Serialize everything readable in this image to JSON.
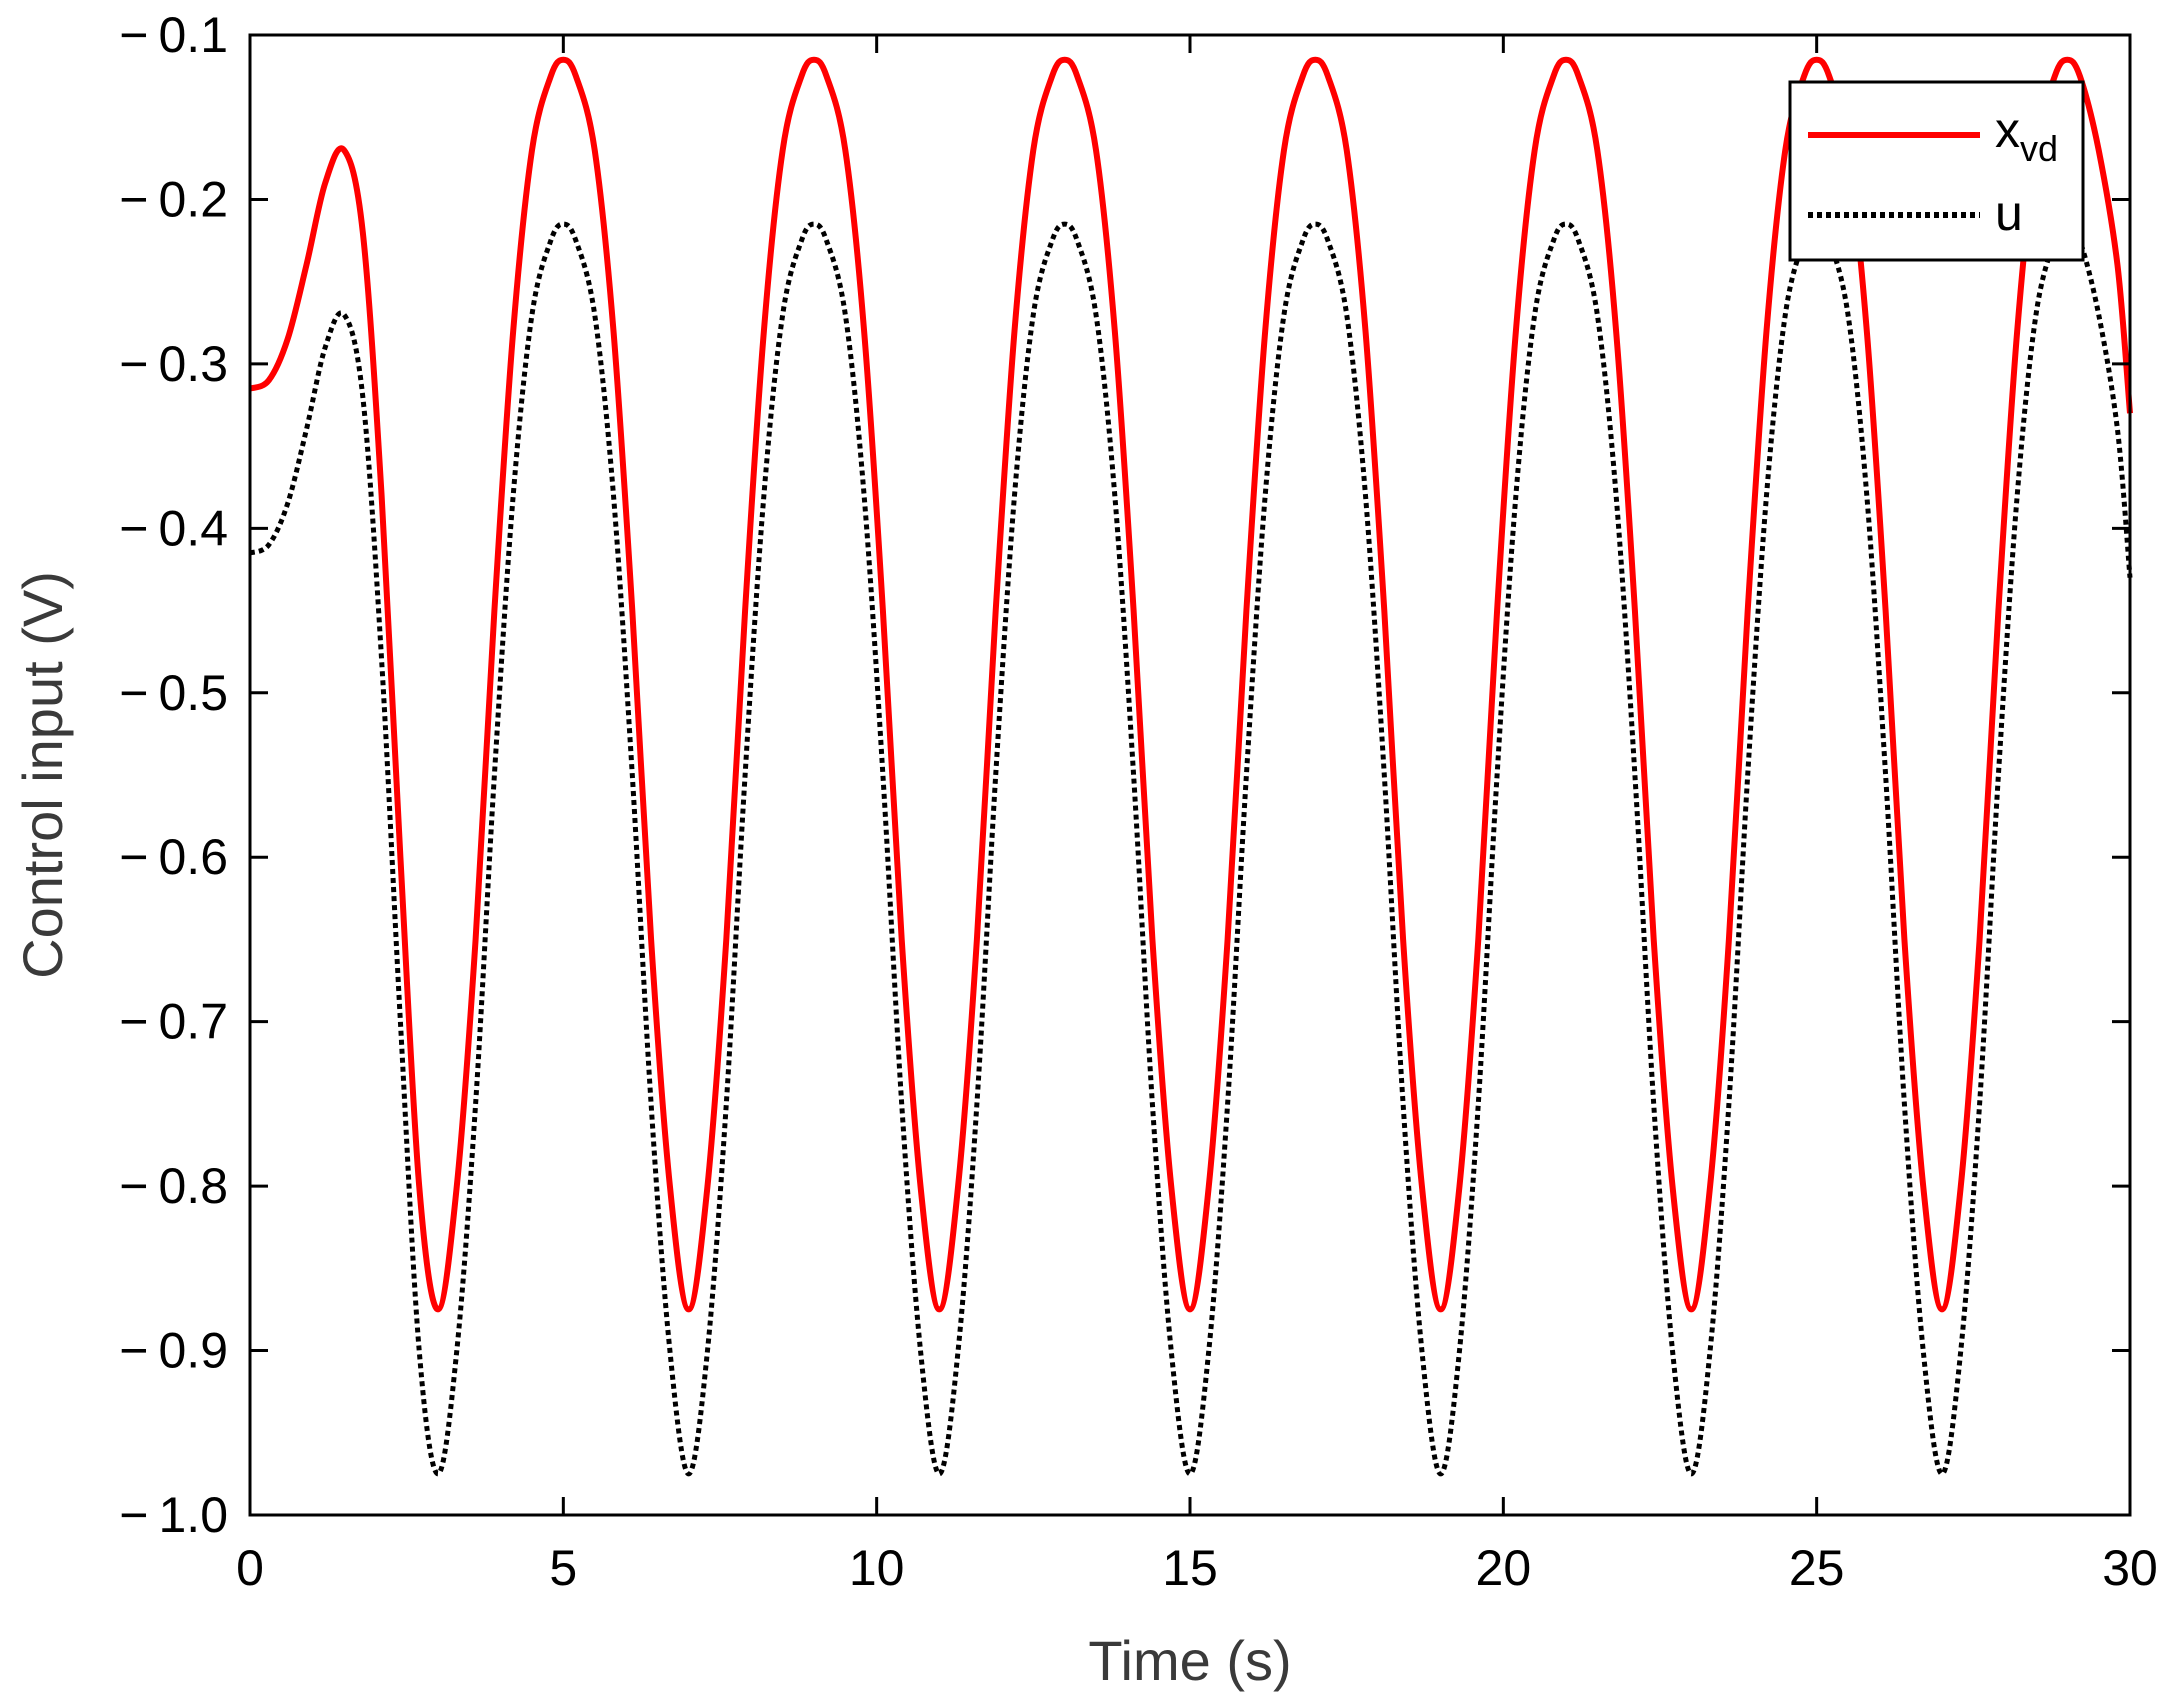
{
  "chart_data": {
    "type": "line",
    "title": "",
    "xlabel": "Time (s)",
    "ylabel": "Control input (V)",
    "xlim": [
      0,
      30
    ],
    "ylim": [
      -1.0,
      -0.1
    ],
    "xticks": [
      0,
      5,
      10,
      15,
      20,
      25,
      30
    ],
    "xtick_labels": [
      "0",
      "5",
      "10",
      "15",
      "20",
      "25",
      "30"
    ],
    "yticks": [
      -0.1,
      -0.2,
      -0.3,
      -0.4,
      -0.5,
      -0.6,
      -0.7,
      -0.8,
      -0.9,
      -1.0
    ],
    "ytick_labels": [
      "− 0.1",
      "− 0.2",
      "− 0.3",
      "− 0.4",
      "− 0.5",
      "− 0.6",
      "− 0.7",
      "− 0.8",
      "− 0.9",
      "− 1.0"
    ],
    "grid": false,
    "legend_position": "top-right",
    "series": [
      {
        "name": "x",
        "name_subscript": "vd",
        "color": "#ff0000",
        "style": "solid",
        "x": [
          0,
          0.3,
          0.6,
          0.9,
          1.2,
          1.5,
          1.8,
          2.1,
          2.4,
          2.7,
          3.0,
          3.3,
          3.6,
          3.9,
          4.2,
          4.5,
          4.8,
          5.0,
          5.2,
          5.5,
          5.8,
          6.1,
          6.4,
          6.7,
          7.0,
          7.3,
          7.6,
          7.9,
          8.2,
          8.5,
          8.8,
          9.0,
          9.2,
          9.5,
          9.8,
          10.1,
          10.4,
          10.7,
          11.0,
          11.3,
          11.6,
          11.9,
          12.2,
          12.5,
          12.8,
          13.0,
          13.2,
          13.5,
          13.8,
          14.1,
          14.4,
          14.7,
          15.0,
          15.3,
          15.6,
          15.9,
          16.2,
          16.5,
          16.8,
          17.0,
          17.2,
          17.5,
          17.8,
          18.1,
          18.4,
          18.7,
          19.0,
          19.3,
          19.6,
          19.9,
          20.2,
          20.5,
          20.8,
          21.0,
          21.2,
          21.5,
          21.8,
          22.1,
          22.4,
          22.7,
          23.0,
          23.3,
          23.6,
          23.9,
          24.2,
          24.5,
          24.8,
          25.0,
          25.2,
          25.5,
          25.8,
          26.1,
          26.4,
          26.7,
          27.0,
          27.3,
          27.6,
          27.9,
          28.2,
          28.5,
          28.8,
          29.0,
          29.2,
          29.5,
          29.8,
          30.0
        ],
        "y": [
          -0.315,
          -0.31,
          -0.285,
          -0.24,
          -0.19,
          -0.17,
          -0.22,
          -0.38,
          -0.6,
          -0.8,
          -0.875,
          -0.8,
          -0.65,
          -0.45,
          -0.28,
          -0.17,
          -0.125,
          -0.115,
          -0.125,
          -0.17,
          -0.28,
          -0.45,
          -0.65,
          -0.8,
          -0.875,
          -0.8,
          -0.65,
          -0.45,
          -0.28,
          -0.17,
          -0.125,
          -0.115,
          -0.125,
          -0.17,
          -0.28,
          -0.45,
          -0.65,
          -0.8,
          -0.875,
          -0.8,
          -0.65,
          -0.45,
          -0.28,
          -0.17,
          -0.125,
          -0.115,
          -0.125,
          -0.17,
          -0.28,
          -0.45,
          -0.65,
          -0.8,
          -0.875,
          -0.8,
          -0.65,
          -0.45,
          -0.28,
          -0.17,
          -0.125,
          -0.115,
          -0.125,
          -0.17,
          -0.28,
          -0.45,
          -0.65,
          -0.8,
          -0.875,
          -0.8,
          -0.65,
          -0.45,
          -0.28,
          -0.17,
          -0.125,
          -0.115,
          -0.125,
          -0.17,
          -0.28,
          -0.45,
          -0.65,
          -0.8,
          -0.875,
          -0.8,
          -0.65,
          -0.45,
          -0.28,
          -0.17,
          -0.125,
          -0.115,
          -0.125,
          -0.17,
          -0.28,
          -0.45,
          -0.65,
          -0.8,
          -0.875,
          -0.8,
          -0.65,
          -0.45,
          -0.28,
          -0.17,
          -0.125,
          -0.115,
          -0.125,
          -0.17,
          -0.24,
          -0.33
        ]
      },
      {
        "name": "u",
        "color": "#000000",
        "style": "dotted",
        "x": [
          0,
          0.3,
          0.6,
          0.9,
          1.2,
          1.5,
          1.8,
          2.1,
          2.4,
          2.7,
          3.0,
          3.3,
          3.6,
          3.9,
          4.2,
          4.5,
          4.8,
          5.0,
          5.2,
          5.5,
          5.8,
          6.1,
          6.4,
          6.7,
          7.0,
          7.3,
          7.6,
          7.9,
          8.2,
          8.5,
          8.8,
          9.0,
          9.2,
          9.5,
          9.8,
          10.1,
          10.4,
          10.7,
          11.0,
          11.3,
          11.6,
          11.9,
          12.2,
          12.5,
          12.8,
          13.0,
          13.2,
          13.5,
          13.8,
          14.1,
          14.4,
          14.7,
          15.0,
          15.3,
          15.6,
          15.9,
          16.2,
          16.5,
          16.8,
          17.0,
          17.2,
          17.5,
          17.8,
          18.1,
          18.4,
          18.7,
          19.0,
          19.3,
          19.6,
          19.9,
          20.2,
          20.5,
          20.8,
          21.0,
          21.2,
          21.5,
          21.8,
          22.1,
          22.4,
          22.7,
          23.0,
          23.3,
          23.6,
          23.9,
          24.2,
          24.5,
          24.8,
          25.0,
          25.2,
          25.5,
          25.8,
          26.1,
          26.4,
          26.7,
          27.0,
          27.3,
          27.6,
          27.9,
          28.2,
          28.5,
          28.8,
          29.0,
          29.2,
          29.5,
          29.8,
          30.0
        ],
        "y": [
          -0.415,
          -0.41,
          -0.385,
          -0.34,
          -0.29,
          -0.27,
          -0.32,
          -0.48,
          -0.7,
          -0.9,
          -0.975,
          -0.9,
          -0.75,
          -0.55,
          -0.38,
          -0.27,
          -0.225,
          -0.215,
          -0.225,
          -0.27,
          -0.38,
          -0.55,
          -0.75,
          -0.9,
          -0.975,
          -0.9,
          -0.75,
          -0.55,
          -0.38,
          -0.27,
          -0.225,
          -0.215,
          -0.225,
          -0.27,
          -0.38,
          -0.55,
          -0.75,
          -0.9,
          -0.975,
          -0.9,
          -0.75,
          -0.55,
          -0.38,
          -0.27,
          -0.225,
          -0.215,
          -0.225,
          -0.27,
          -0.38,
          -0.55,
          -0.75,
          -0.9,
          -0.975,
          -0.9,
          -0.75,
          -0.55,
          -0.38,
          -0.27,
          -0.225,
          -0.215,
          -0.225,
          -0.27,
          -0.38,
          -0.55,
          -0.75,
          -0.9,
          -0.975,
          -0.9,
          -0.75,
          -0.55,
          -0.38,
          -0.27,
          -0.225,
          -0.215,
          -0.225,
          -0.27,
          -0.38,
          -0.55,
          -0.75,
          -0.9,
          -0.975,
          -0.9,
          -0.75,
          -0.55,
          -0.38,
          -0.27,
          -0.225,
          -0.215,
          -0.225,
          -0.27,
          -0.38,
          -0.55,
          -0.75,
          -0.9,
          -0.975,
          -0.9,
          -0.75,
          -0.55,
          -0.38,
          -0.27,
          -0.225,
          -0.215,
          -0.225,
          -0.27,
          -0.34,
          -0.43
        ]
      }
    ]
  }
}
